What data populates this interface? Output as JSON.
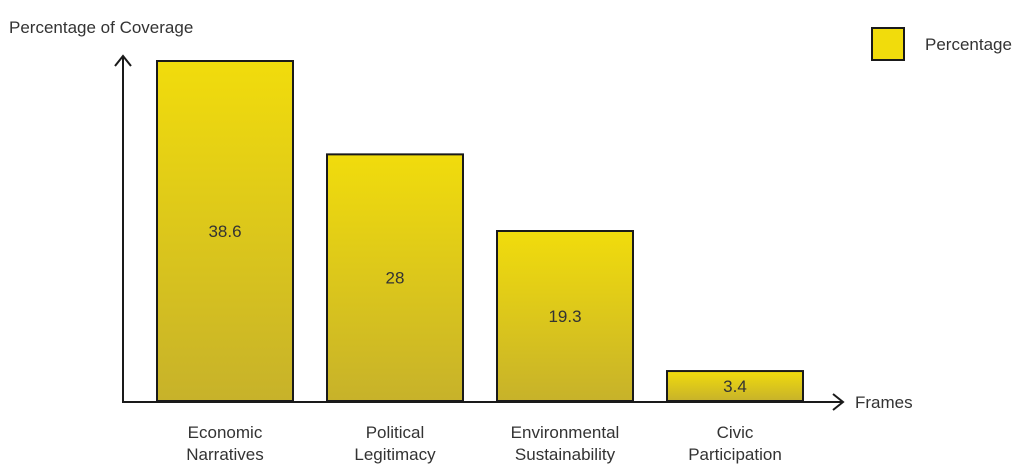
{
  "chart_data": {
    "type": "bar",
    "title": "",
    "ylabel": "Percentage of Coverage",
    "xlabel": "Frames",
    "categories": [
      [
        "Economic",
        "Narratives"
      ],
      [
        "Political",
        "Legitimacy"
      ],
      [
        "Environmental",
        "Sustainability"
      ],
      [
        "Civic",
        "Participation"
      ]
    ],
    "series": [
      {
        "name": "Percentage",
        "values": [
          38.6,
          28,
          19.3,
          3.4
        ],
        "color": "#f1dc0c",
        "color_bottom": "#c7b22a",
        "stroke": "#1a1a1a"
      }
    ],
    "ylim": [
      0,
      38.6
    ],
    "grid": false,
    "legend": {
      "position": "top-right"
    }
  }
}
